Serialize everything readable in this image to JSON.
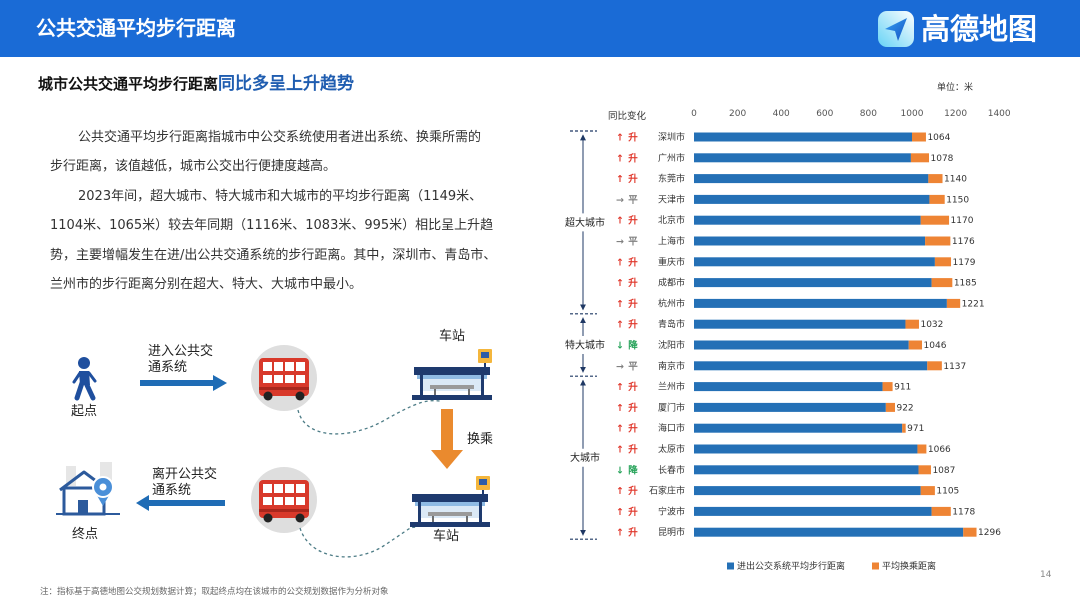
{
  "theme": {
    "header_blue": "#1a6bd6",
    "accent_blue": "#1f5db0"
  },
  "header": {
    "title": "公共交通平均步行距离",
    "brand": "高德地图"
  },
  "subtitle": {
    "main": "城市公共交通平均步行距离",
    "highlight": "同比多呈上升趋势"
  },
  "body": {
    "paragraphs": [
      [
        "公共交通平均步行距离指城市中公交系统使用者进出系统、换乘所需的",
        "步行距离，该值越低，城市公交出行便捷度越高。"
      ],
      [
        "2023年间，超大城市、特大城市和大城市的平均步行距离（1149米、",
        "1104米、1065米）较去年同期（1116米、1083米、995米）相比呈上升趋",
        "势，主要增幅发生在进/出公共交通系统的步行距离。其中，深圳市、青岛市、",
        "兰州市的步行距离分别在超大、特大、大城市中最小。"
      ]
    ]
  },
  "diagram": {
    "start": "起点",
    "end": "终点",
    "enter": [
      "进入公共交",
      "通系统"
    ],
    "exit": [
      "离开公共交",
      "通系统"
    ],
    "station_top": "车站",
    "station_bottom": "车站",
    "transfer": "换乘",
    "icons": {
      "start": "walking-person-icon",
      "vehicle": "double-decker-bus-icon",
      "station": "bus-stop-icon",
      "end": "home-location-icon"
    }
  },
  "chart_data": {
    "type": "bar",
    "orientation": "horizontal",
    "stacked": true,
    "unit_label": "单位：米",
    "change_header": "同比变化",
    "xlim": [
      0,
      1400
    ],
    "xticks": [
      0,
      200,
      400,
      600,
      800,
      1000,
      1200,
      1400
    ],
    "grid": false,
    "legend_position": "bottom",
    "categories": [
      "深圳市",
      "广州市",
      "东莞市",
      "天津市",
      "北京市",
      "上海市",
      "重庆市",
      "成都市",
      "杭州市",
      "青岛市",
      "沈阳市",
      "南京市",
      "兰州市",
      "厦门市",
      "海口市",
      "太原市",
      "长春市",
      "石家庄市",
      "宁波市",
      "昆明市"
    ],
    "groups": [
      {
        "name": "超大城市",
        "count": 9
      },
      {
        "name": "特大城市",
        "count": 3
      },
      {
        "name": "大城市",
        "count": 8
      }
    ],
    "changes": [
      "升",
      "升",
      "升",
      "平",
      "升",
      "平",
      "升",
      "升",
      "升",
      "升",
      "降",
      "平",
      "升",
      "升",
      "升",
      "升",
      "降",
      "升",
      "升",
      "升"
    ],
    "change_arrows": {
      "升": "↑",
      "平": "→",
      "降": "↓"
    },
    "change_colors": {
      "升": "#e0382c",
      "平": "#808080",
      "降": "#27a35a"
    },
    "totals": [
      1064,
      1078,
      1140,
      1150,
      1170,
      1176,
      1179,
      1185,
      1221,
      1032,
      1046,
      1137,
      911,
      922,
      971,
      1066,
      1087,
      1105,
      1178,
      1296
    ],
    "series": [
      {
        "name": "进出公交系统平均步行距离",
        "color": "#2470b6",
        "values": [
          1000,
          995,
          1075,
          1080,
          1040,
          1060,
          1105,
          1090,
          1160,
          970,
          985,
          1070,
          865,
          880,
          955,
          1025,
          1030,
          1040,
          1090,
          1235
        ]
      },
      {
        "name": "平均换乘距离",
        "color": "#ee8434",
        "values": [
          64,
          83,
          65,
          70,
          130,
          116,
          74,
          95,
          61,
          62,
          61,
          67,
          46,
          42,
          16,
          41,
          57,
          65,
          88,
          61
        ]
      }
    ]
  },
  "footer": {
    "note": "注：指标基于高德地图公交规划数据计算；取起终点均在该城市的公交规划数据作为分析对象",
    "page": "14"
  }
}
